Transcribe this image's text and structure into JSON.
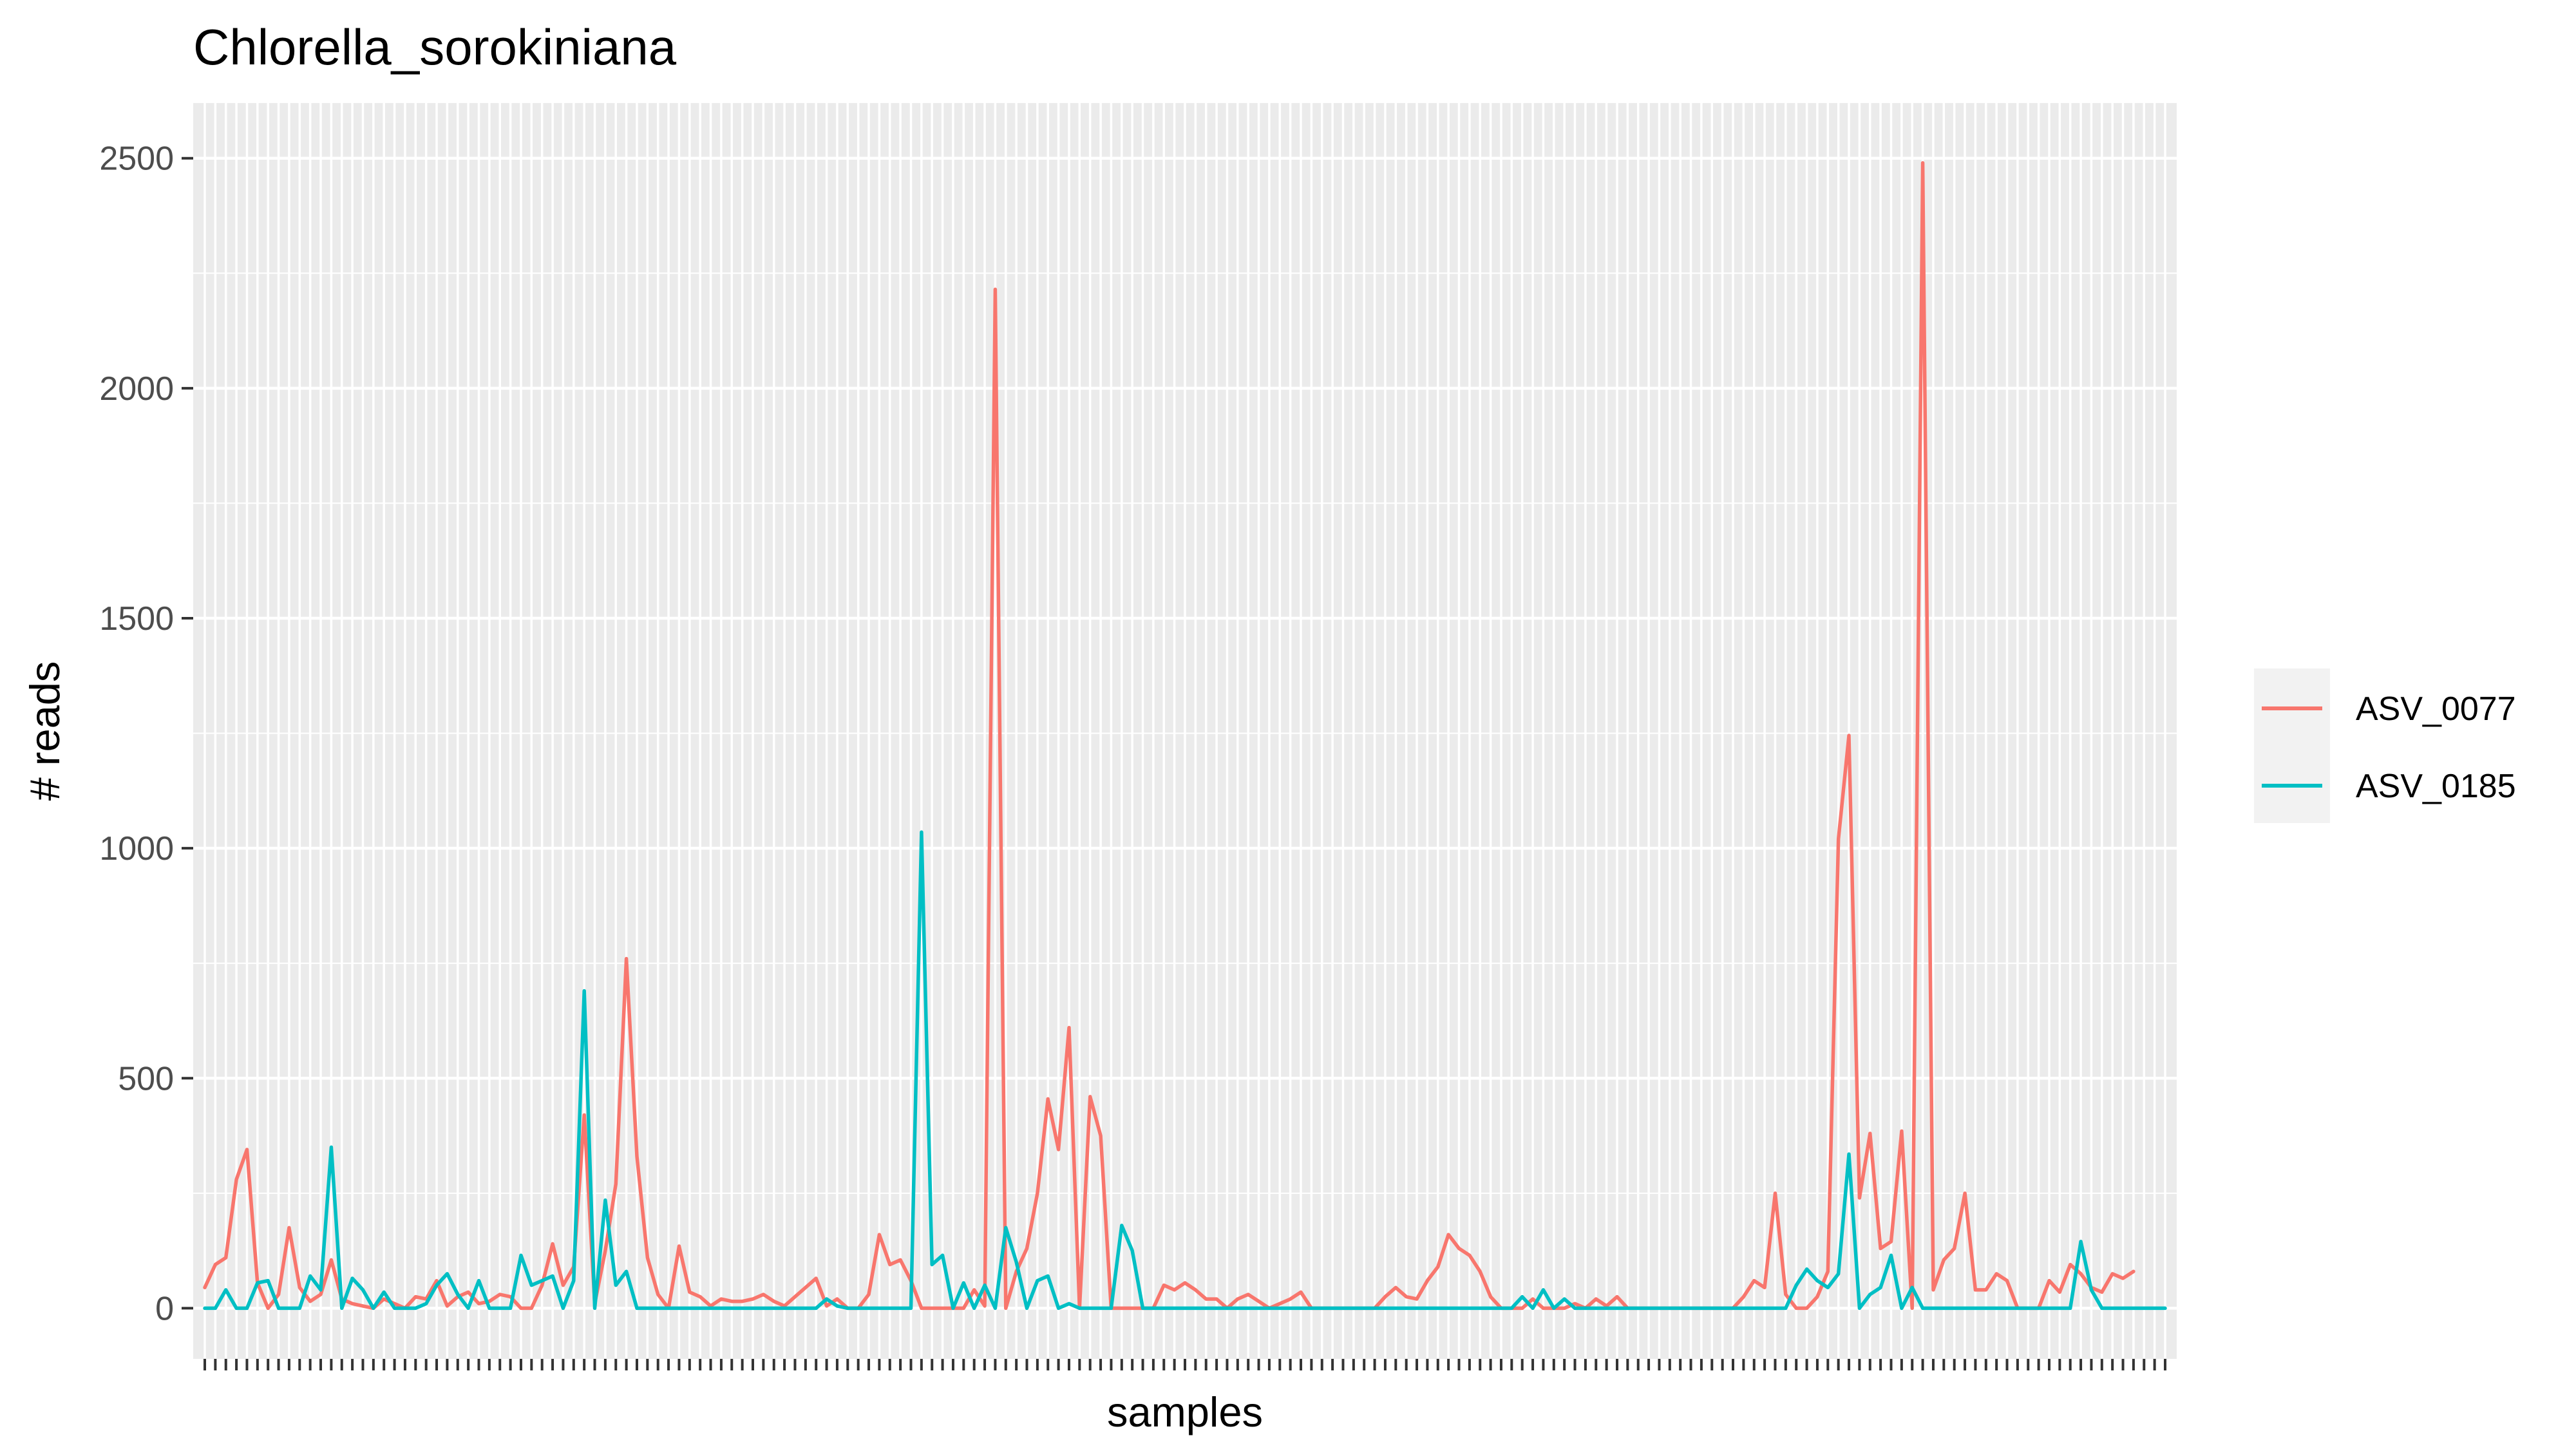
{
  "chart_data": {
    "type": "line",
    "title": "Chlorella_sorokiniana",
    "xlabel": "samples",
    "ylabel": "# reads",
    "ylim": [
      -110,
      2620
    ],
    "yticks": [
      0,
      500,
      1000,
      1500,
      2000,
      2500
    ],
    "grid": true,
    "legend_position": "right",
    "series": [
      {
        "name": "ASV_0077",
        "color": "#F8766D",
        "values": [
          45,
          95,
          110,
          280,
          345,
          55,
          0,
          30,
          175,
          45,
          15,
          30,
          105,
          20,
          10,
          5,
          0,
          20,
          10,
          0,
          25,
          20,
          60,
          5,
          25,
          35,
          10,
          15,
          30,
          25,
          0,
          0,
          50,
          140,
          50,
          90,
          420,
          10,
          125,
          270,
          760,
          330,
          110,
          30,
          0,
          135,
          35,
          25,
          5,
          20,
          15,
          15,
          20,
          30,
          15,
          5,
          25,
          45,
          65,
          5,
          20,
          0,
          0,
          30,
          160,
          95,
          105,
          60,
          0,
          0,
          0,
          0,
          0,
          40,
          5,
          2215,
          0,
          80,
          130,
          250,
          455,
          345,
          610,
          0,
          460,
          375,
          0,
          0,
          0,
          0,
          0,
          50,
          40,
          55,
          40,
          20,
          20,
          0,
          20,
          30,
          15,
          0,
          10,
          20,
          35,
          0,
          0,
          0,
          0,
          0,
          0,
          0,
          25,
          45,
          25,
          20,
          60,
          90,
          160,
          130,
          115,
          80,
          25,
          0,
          0,
          0,
          20,
          0,
          0,
          0,
          10,
          0,
          20,
          5,
          25,
          0,
          0,
          0,
          0,
          0,
          0,
          0,
          0,
          0,
          0,
          0,
          25,
          60,
          45,
          250,
          30,
          0,
          0,
          25,
          80,
          1020,
          1245,
          240,
          380,
          130,
          145,
          385,
          0,
          2490,
          40,
          105,
          130,
          250,
          40,
          40,
          75,
          60,
          0,
          0,
          0,
          60,
          35,
          95,
          75,
          45,
          35,
          75,
          65,
          80
        ]
      },
      {
        "name": "ASV_0185",
        "color": "#00BFC4",
        "values": [
          0,
          0,
          40,
          0,
          0,
          55,
          60,
          0,
          0,
          0,
          70,
          40,
          350,
          0,
          65,
          40,
          0,
          35,
          0,
          0,
          0,
          10,
          50,
          75,
          30,
          0,
          60,
          0,
          0,
          0,
          115,
          50,
          60,
          70,
          0,
          60,
          690,
          0,
          235,
          50,
          80,
          0,
          0,
          0,
          0,
          0,
          0,
          0,
          0,
          0,
          0,
          0,
          0,
          0,
          0,
          0,
          0,
          0,
          0,
          20,
          5,
          0,
          0,
          0,
          0,
          0,
          0,
          0,
          1035,
          95,
          115,
          0,
          55,
          0,
          50,
          0,
          175,
          100,
          0,
          60,
          70,
          0,
          10,
          0,
          0,
          0,
          0,
          180,
          125,
          0,
          0,
          0,
          0,
          0,
          0,
          0,
          0,
          0,
          0,
          0,
          0,
          0,
          0,
          0,
          0,
          0,
          0,
          0,
          0,
          0,
          0,
          0,
          0,
          0,
          0,
          0,
          0,
          0,
          0,
          0,
          0,
          0,
          0,
          0,
          0,
          25,
          0,
          40,
          0,
          20,
          0,
          0,
          0,
          0,
          0,
          0,
          0,
          0,
          0,
          0,
          0,
          0,
          0,
          0,
          0,
          0,
          0,
          0,
          0,
          0,
          0,
          50,
          85,
          60,
          45,
          75,
          335,
          0,
          30,
          45,
          115,
          0,
          45,
          0,
          0,
          0,
          0,
          0,
          0,
          0,
          0,
          0,
          0,
          0,
          0,
          0,
          0,
          0,
          145,
          40,
          0,
          0,
          0,
          0,
          0,
          0,
          0
        ]
      }
    ]
  }
}
